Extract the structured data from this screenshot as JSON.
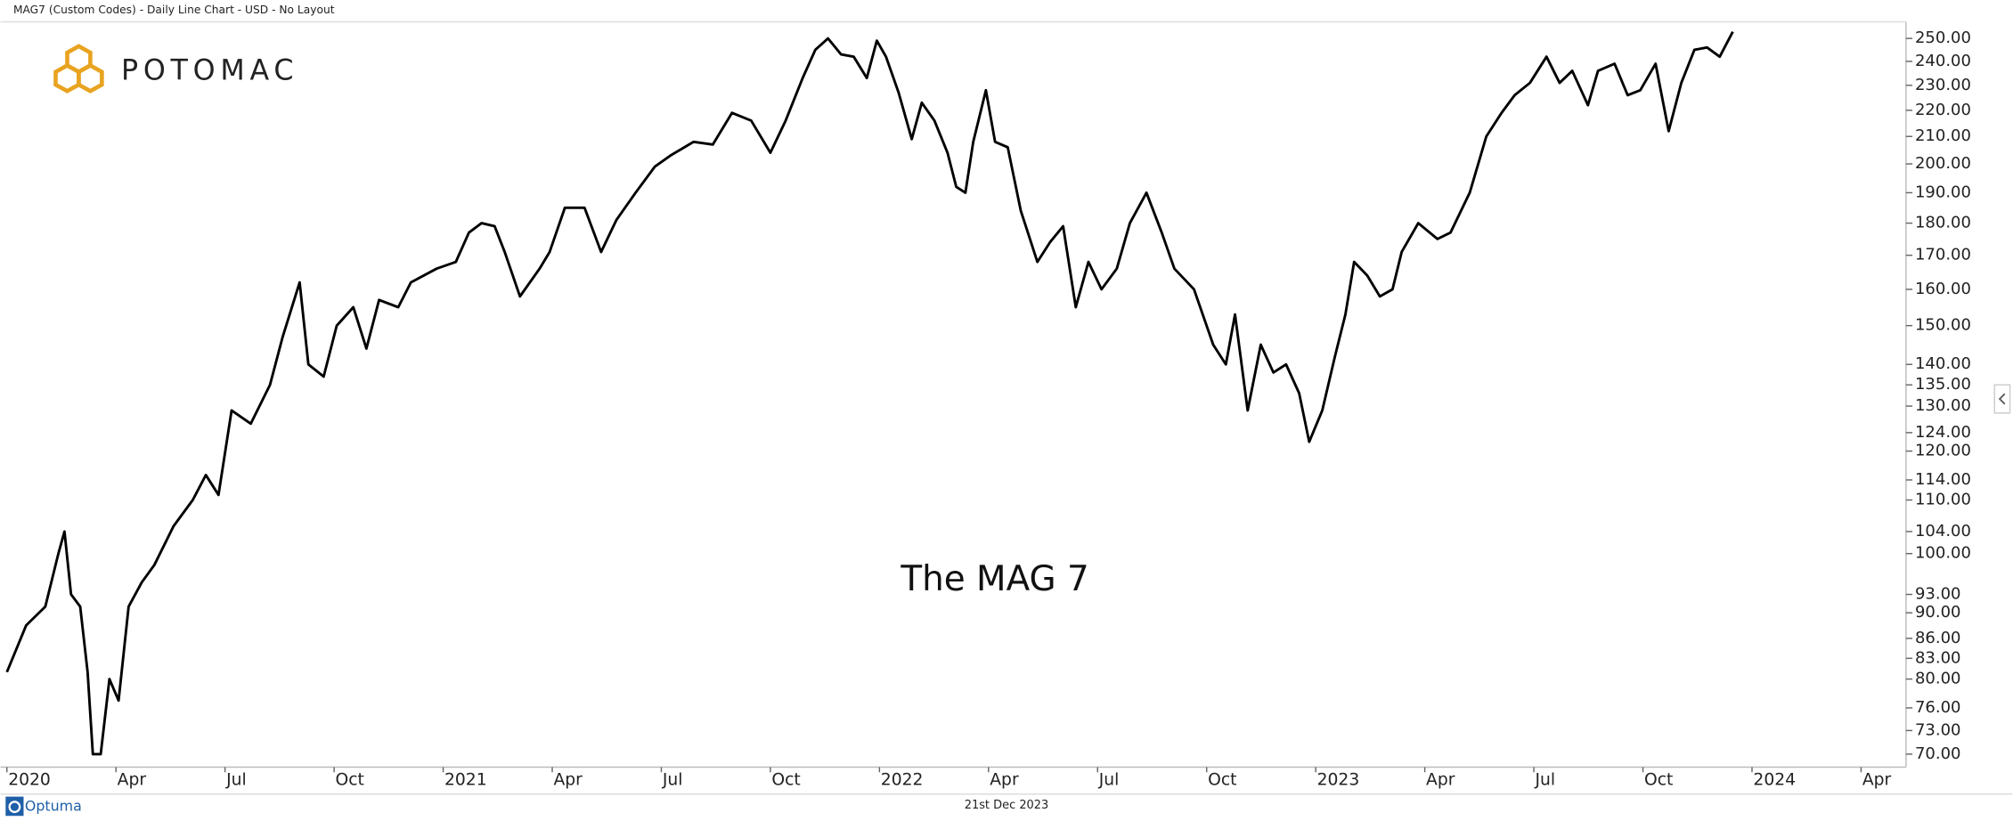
{
  "header": "MAG7 (Custom Codes) - Daily Line Chart - USD - No Layout",
  "logo": "POTOMAC",
  "footer": {
    "brand": "Optuma",
    "date": "21st Dec 2023"
  },
  "chart_data": {
    "type": "line",
    "annotation": "The MAG 7",
    "y_scale": "log",
    "line_color": "#000000",
    "xlim": [
      2020,
      2024.353
    ],
    "xticks": [
      {
        "value": 2020,
        "label": "2020"
      },
      {
        "value": 2020.25,
        "label": "Apr"
      },
      {
        "value": 2020.5,
        "label": "Jul"
      },
      {
        "value": 2020.75,
        "label": "Oct"
      },
      {
        "value": 2021,
        "label": "2021"
      },
      {
        "value": 2021.25,
        "label": "Apr"
      },
      {
        "value": 2021.5,
        "label": "Jul"
      },
      {
        "value": 2021.75,
        "label": "Oct"
      },
      {
        "value": 2022,
        "label": "2022"
      },
      {
        "value": 2022.25,
        "label": "Apr"
      },
      {
        "value": 2022.5,
        "label": "Jul"
      },
      {
        "value": 2022.75,
        "label": "Oct"
      },
      {
        "value": 2023,
        "label": "2023"
      },
      {
        "value": 2023.25,
        "label": "Apr"
      },
      {
        "value": 2023.5,
        "label": "Jul"
      },
      {
        "value": 2023.75,
        "label": "Oct"
      },
      {
        "value": 2024,
        "label": "2024"
      },
      {
        "value": 2024.25,
        "label": "Apr"
      }
    ],
    "ylim": [
      68.4,
      257.5
    ],
    "yticks": [
      {
        "value": 250,
        "label": "250.00"
      },
      {
        "value": 240,
        "label": "240.00"
      },
      {
        "value": 230,
        "label": "230.00"
      },
      {
        "value": 220,
        "label": "220.00"
      },
      {
        "value": 210,
        "label": "210.00"
      },
      {
        "value": 200,
        "label": "200.00"
      },
      {
        "value": 190,
        "label": "190.00"
      },
      {
        "value": 180,
        "label": "180.00"
      },
      {
        "value": 170,
        "label": "170.00"
      },
      {
        "value": 160,
        "label": "160.00"
      },
      {
        "value": 150,
        "label": "150.00"
      },
      {
        "value": 140,
        "label": "140.00"
      },
      {
        "value": 135,
        "label": "135.00"
      },
      {
        "value": 130,
        "label": "130.00"
      },
      {
        "value": 124,
        "label": "124.00"
      },
      {
        "value": 120,
        "label": "120.00"
      },
      {
        "value": 114,
        "label": "114.00"
      },
      {
        "value": 110,
        "label": "110.00"
      },
      {
        "value": 104,
        "label": "104.00"
      },
      {
        "value": 100,
        "label": "100.00"
      },
      {
        "value": 93,
        "label": "93.00"
      },
      {
        "value": 90,
        "label": "90.00"
      },
      {
        "value": 86,
        "label": "86.00"
      },
      {
        "value": 83,
        "label": "83.00"
      },
      {
        "value": 80,
        "label": "80.00"
      },
      {
        "value": 76,
        "label": "76.00"
      },
      {
        "value": 73,
        "label": "73.00"
      },
      {
        "value": 70,
        "label": "70.00"
      }
    ],
    "x": [
      2020,
      2020.044,
      2020.088,
      2020.118,
      2020.132,
      2020.147,
      2020.168,
      2020.185,
      2020.197,
      2020.215,
      2020.235,
      2020.256,
      2020.279,
      2020.309,
      2020.338,
      2020.382,
      2020.426,
      2020.456,
      2020.485,
      2020.515,
      2020.559,
      2020.603,
      2020.632,
      2020.671,
      2020.691,
      2020.726,
      2020.756,
      2020.794,
      2020.824,
      2020.853,
      2020.897,
      2020.926,
      2020.985,
      2021.029,
      2021.059,
      2021.088,
      2021.118,
      2021.141,
      2021.176,
      2021.221,
      2021.244,
      2021.279,
      2021.324,
      2021.362,
      2021.397,
      2021.441,
      2021.485,
      2021.521,
      2021.574,
      2021.618,
      2021.662,
      2021.706,
      2021.75,
      2021.785,
      2021.824,
      2021.853,
      2021.882,
      2021.912,
      2021.941,
      2021.971,
      2021.994,
      2022.015,
      2022.044,
      2022.074,
      2022.097,
      2022.126,
      2022.156,
      2022.176,
      2022.197,
      2022.215,
      2022.244,
      2022.265,
      2022.294,
      2022.324,
      2022.362,
      2022.391,
      2022.421,
      2022.45,
      2022.479,
      2022.509,
      2022.544,
      2022.574,
      2022.612,
      2022.647,
      2022.676,
      2022.721,
      2022.765,
      2022.794,
      2022.815,
      2022.844,
      2022.874,
      2022.903,
      2022.932,
      2022.962,
      2022.985,
      2023.015,
      2023.044,
      2023.068,
      2023.088,
      2023.118,
      2023.147,
      2023.176,
      2023.197,
      2023.235,
      2023.279,
      2023.309,
      2023.353,
      2023.391,
      2023.426,
      2023.456,
      2023.491,
      2023.529,
      2023.559,
      2023.588,
      2023.624,
      2023.647,
      2023.685,
      2023.715,
      2023.744,
      2023.779,
      2023.809,
      2023.838,
      2023.868,
      2023.897,
      2023.926,
      2023.956
    ],
    "values": [
      81,
      88,
      91,
      100,
      104,
      93,
      91,
      81,
      70,
      70,
      80,
      77,
      91,
      95,
      98,
      105,
      110,
      115,
      111,
      129,
      126,
      135,
      147,
      162,
      140,
      137,
      150,
      155,
      144,
      157,
      155,
      162,
      166,
      168,
      177,
      180,
      179,
      171,
      158,
      166,
      171,
      185,
      185,
      171,
      181,
      190,
      199,
      203,
      208,
      207,
      219,
      216,
      204,
      216,
      233,
      245,
      250,
      243,
      242,
      233,
      249,
      242,
      227,
      209,
      223,
      216,
      204,
      192,
      190,
      208,
      228,
      208,
      206,
      184,
      168,
      174,
      179,
      155,
      168,
      160,
      166,
      180,
      190,
      177,
      166,
      160,
      145,
      140,
      153,
      129,
      145,
      138,
      140,
      133,
      122,
      129,
      142,
      153,
      168,
      164,
      158,
      160,
      171,
      180,
      175,
      177,
      190,
      210,
      219,
      226,
      231,
      242,
      231,
      236,
      222,
      236,
      239,
      226,
      228,
      239,
      212,
      231,
      245,
      246,
      242,
      253
    ]
  }
}
